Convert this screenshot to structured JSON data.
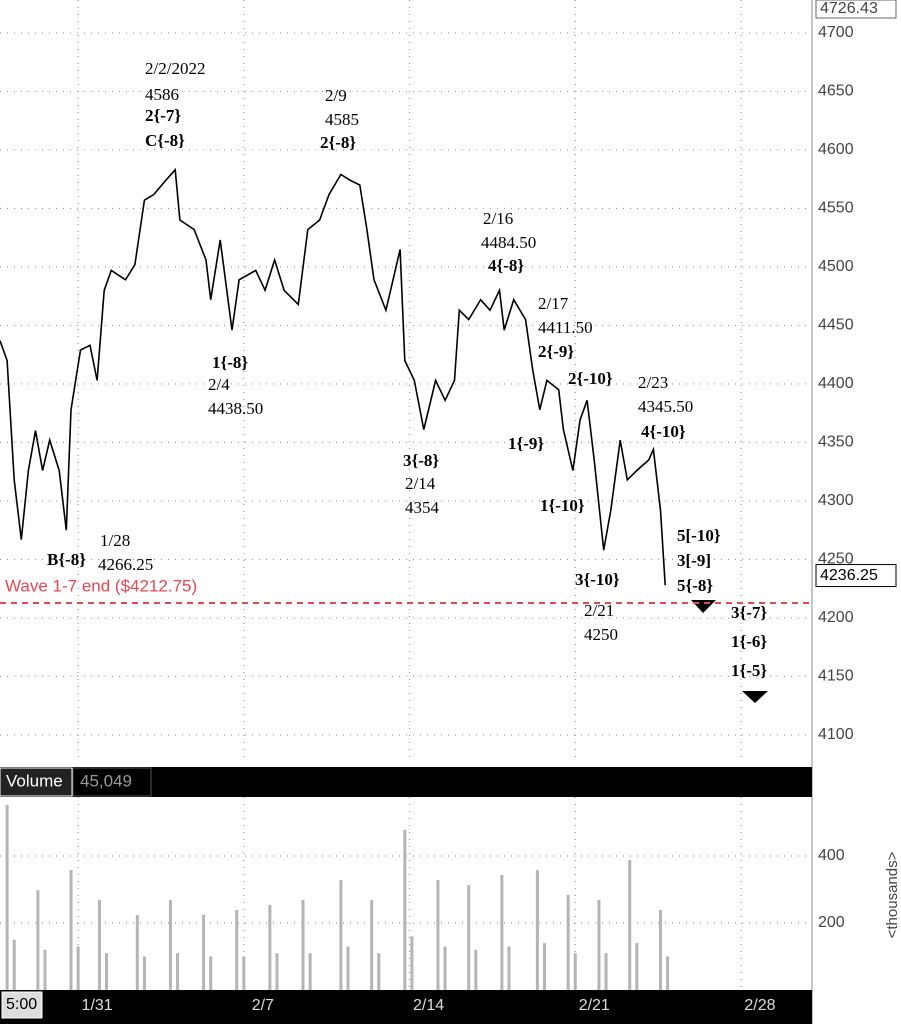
{
  "chart_data": [
    {
      "type": "line",
      "color": "#000000",
      "grid": true,
      "x": [
        27.7,
        28.0,
        28.3,
        28.6,
        28.9,
        29.2,
        29.5,
        29.8,
        30.2,
        30.5,
        30.7,
        31.1,
        31.5,
        31.8,
        32.1,
        32.4,
        33.0,
        33.4,
        33.8,
        34.2,
        34.7,
        35.1,
        35.3,
        35.9,
        36.4,
        36.6,
        37.0,
        37.5,
        37.8,
        38.5,
        38.9,
        39.3,
        39.7,
        40.3,
        40.7,
        41.2,
        41.6,
        42.1,
        42.5,
        42.9,
        43.2,
        43.5,
        44.0,
        44.2,
        44.6,
        44.8,
        45.2,
        45.6,
        46.1,
        46.5,
        46.9,
        47.1,
        47.5,
        48.0,
        48.4,
        48.8,
        49.0,
        49.4,
        49.9,
        50.2,
        50.5,
        50.8,
        51.3,
        51.5,
        51.9,
        52.2,
        52.5,
        52.8,
        53.2,
        53.5,
        53.9,
        54.2,
        54.6,
        55.1,
        55.3,
        55.6,
        55.8
      ],
      "values": [
        4437,
        4420,
        4318,
        4267,
        4326,
        4360,
        4326,
        4352,
        4326,
        4275,
        4378,
        4429,
        4433,
        4403,
        4480,
        4497,
        4489,
        4502,
        4557,
        4562,
        4574,
        4583,
        4540,
        4532,
        4506,
        4472,
        4523,
        4446,
        4489,
        4497,
        4480,
        4506,
        4480,
        4468,
        4532,
        4540,
        4562,
        4579,
        4574,
        4570,
        4532,
        4489,
        4463,
        4480,
        4515,
        4420,
        4403,
        4361,
        4403,
        4386,
        4403,
        4463,
        4455,
        4472,
        4463,
        4480,
        4446,
        4472,
        4455,
        4412,
        4378,
        4403,
        4395,
        4361,
        4326,
        4369,
        4386,
        4335,
        4258,
        4292,
        4352,
        4318,
        4326,
        4335,
        4344,
        4292,
        4228
      ],
      "xlim": [
        27.7,
        62.0
      ],
      "xticks": [
        {
          "value": 31,
          "label": "1/31"
        },
        {
          "value": 38,
          "label": "2/7"
        },
        {
          "value": 45,
          "label": "2/14"
        },
        {
          "value": 52,
          "label": "2/21"
        },
        {
          "value": 59,
          "label": "2/28"
        }
      ],
      "ylim": [
        4078.6,
        4726.43
      ],
      "yticks": [
        4100,
        4150,
        4200,
        4250,
        4300,
        4350,
        4400,
        4450,
        4500,
        4550,
        4600,
        4650,
        4700
      ],
      "last_value": 4236.25,
      "time_label": "5:00",
      "hline": {
        "value": 4212.75,
        "label": "Wave 1-7 end ($4212.75)",
        "color": "#e8474f"
      },
      "annotations": [
        "2/2/2022",
        "4586",
        "2{-7}",
        "C{-8}",
        "2/9",
        "4585",
        "2{-8}",
        "1{-8}",
        "2/4",
        "4438.50",
        "2/16",
        "4484.50",
        "4{-8}",
        "2/17",
        "4411.50",
        "2{-9}",
        "2{-10}",
        "2/23",
        "4345.50",
        "4{-10}",
        "1{-9}",
        "3{-8}",
        "2/14",
        "4354",
        "1{-10}",
        "1/28",
        "B{-8}",
        "4266.25",
        "5[-10}",
        "3[-9]",
        "5{-8}",
        "3{-10}",
        "2/21",
        "4250",
        "3{-7}",
        "1{-6}",
        "1{-5}"
      ]
    },
    {
      "type": "bar",
      "title": "Volume",
      "current": "45,049",
      "color": "#b4b4b4",
      "y_label": "<thousands>",
      "x": [
        28.0,
        28.3,
        29.3,
        29.6,
        30.7,
        31.0,
        31.9,
        32.2,
        33.5,
        33.8,
        34.9,
        35.2,
        36.3,
        36.6,
        37.7,
        38.0,
        39.1,
        39.4,
        40.5,
        40.8,
        42.1,
        42.4,
        43.4,
        43.7,
        44.8,
        45.1,
        46.2,
        46.5,
        47.5,
        47.8,
        48.9,
        49.2,
        50.4,
        50.7,
        51.7,
        52.0,
        53.0,
        53.3,
        54.3,
        54.6,
        55.6,
        55.9
      ],
      "values": [
        552,
        150,
        298,
        120,
        358,
        130,
        269,
        110,
        224,
        100,
        269,
        110,
        224,
        100,
        239,
        100,
        254,
        110,
        269,
        110,
        328,
        130,
        269,
        110,
        478,
        160,
        328,
        130,
        313,
        120,
        343,
        130,
        358,
        140,
        284,
        110,
        269,
        110,
        388,
        140,
        239,
        100
      ],
      "ylim": [
        0,
        576
      ],
      "yticks": [
        200,
        400
      ]
    }
  ]
}
